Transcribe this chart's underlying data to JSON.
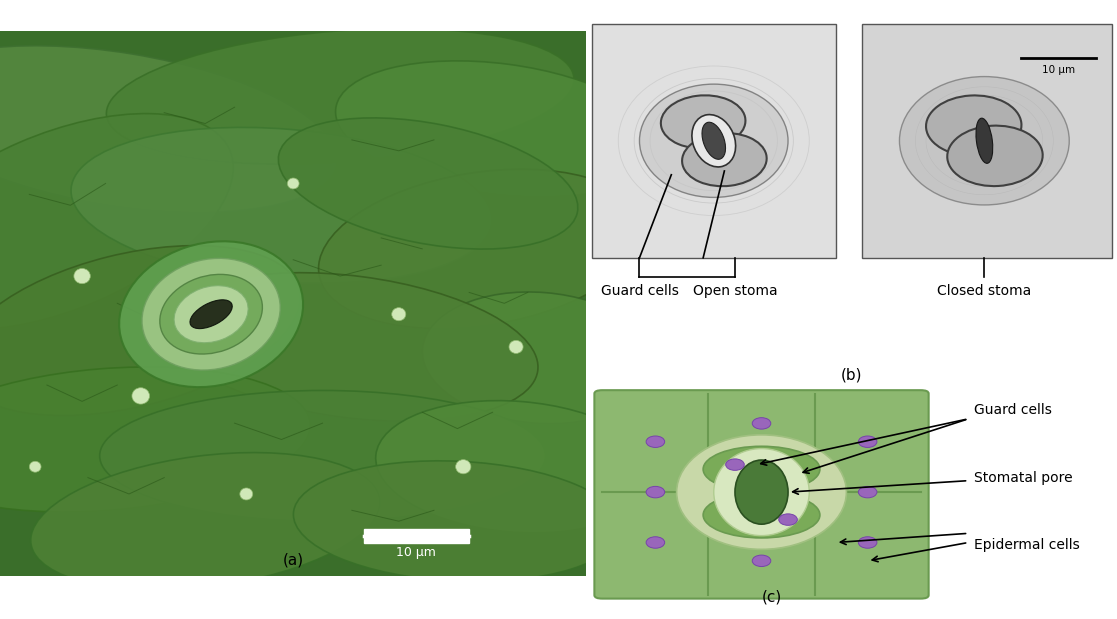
{
  "bg_color": "#ffffff",
  "panel_a_label": "(a)",
  "panel_b_label": "(b)",
  "panel_c_label": "(c)",
  "scale_bar_text_a": "10 μm",
  "scale_bar_text_b": "10 μm",
  "label_guard_cells_b": "Guard cells",
  "label_open_stoma": "Open stoma",
  "label_closed_stoma": "Closed stoma",
  "label_guard_cells_c": "Guard cells",
  "label_stomatal_pore": "Stomatal pore",
  "label_epidermal_cells": "Epidermal cells",
  "green_cell": "#8db870",
  "green_cell_border": "#6a9a50",
  "green_guard_halo": "#c8d8a8",
  "green_guard_cell": "#7aab58",
  "green_pore": "#4a7a38",
  "green_inner_ring": "#d8e8c0",
  "purple_nucleus": "#9966bb",
  "annotation_color": "#000000",
  "font_size_label": 10,
  "font_size_panel": 11,
  "font_size_scale": 9,
  "sem_bg": "#3a6e2a",
  "sem_ridge1": "#4a8835",
  "sem_ridge2": "#558840",
  "sem_ridge3": "#3e7830",
  "sem_guard_outer": "#70b060",
  "sem_guard_mid": "#a0d090",
  "sem_guard_pore": "#181e10"
}
